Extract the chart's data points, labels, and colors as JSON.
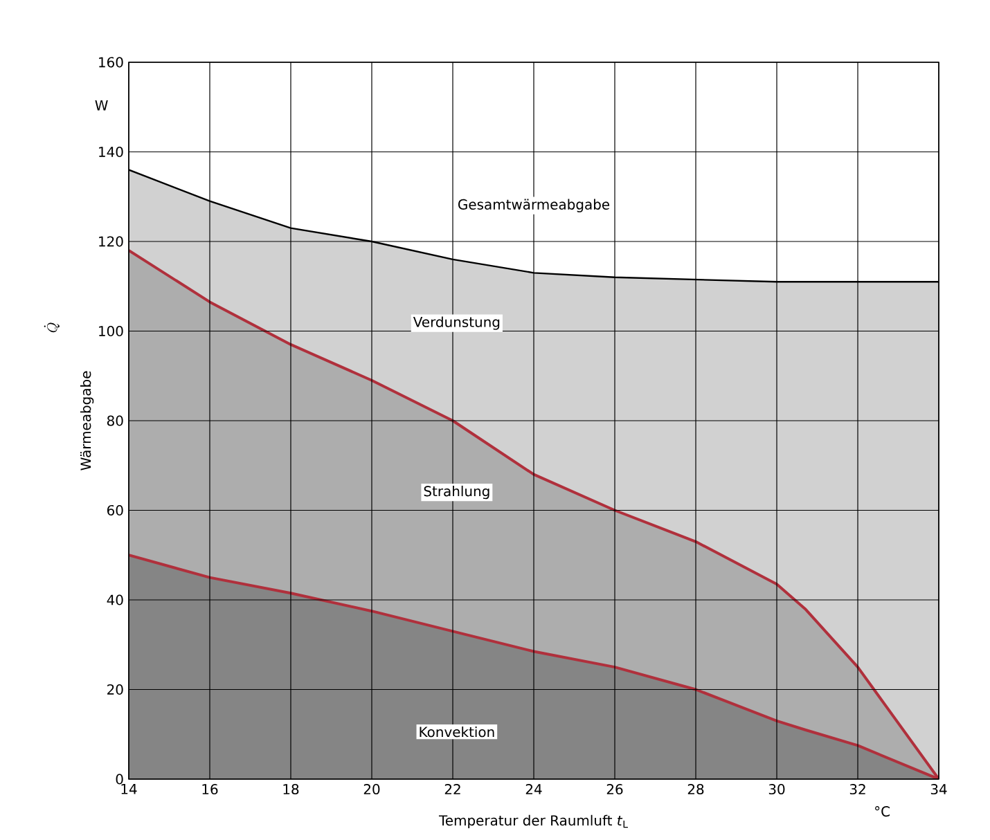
{
  "chart_data": {
    "type": "area",
    "x": [
      14,
      16,
      18,
      20,
      22,
      24,
      26,
      28,
      30,
      30.7,
      32,
      34
    ],
    "series": [
      {
        "color": "#000000",
        "values": [
          136,
          129,
          123,
          120,
          116,
          113,
          112,
          111.5,
          111,
          111,
          111,
          111
        ]
      },
      {
        "color": "#b0303c",
        "values": [
          118,
          106.5,
          97,
          89,
          80,
          68,
          60,
          53,
          43.5,
          38,
          25,
          0
        ]
      },
      {
        "color": "#b0303c",
        "values": [
          50,
          45,
          41.5,
          37.5,
          33,
          28.5,
          25,
          20,
          13,
          11,
          7.5,
          0
        ]
      }
    ],
    "xlim": [
      14,
      34
    ],
    "ylim": [
      0,
      160
    ],
    "xticks": [
      14,
      16,
      18,
      20,
      22,
      24,
      26,
      28,
      30,
      32,
      34
    ],
    "yticks": [
      0,
      20,
      40,
      60,
      80,
      100,
      120,
      140,
      160
    ],
    "grid": true,
    "xlabel": "Temperatur der Raumluft *t*$_{L}$",
    "ylabel": "Wärmeabgabe",
    "annotations": [
      "W",
      "°C",
      "Gesamtwärmeabgabe",
      "Verdunstung",
      "Strahlung",
      "Konvektion",
      "\\dot{Q}"
    ]
  }
}
